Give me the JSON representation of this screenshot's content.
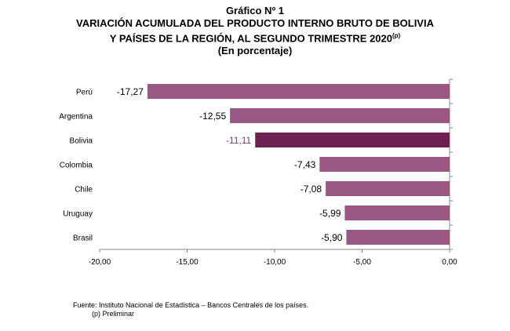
{
  "header": {
    "label": "Gráfico Nº 1",
    "title_line1": "VARIACIÓN ACUMULADA DEL PRODUCTO INTERNO BRUTO DE BOLIVIA",
    "title_line2": "Y PAÍSES DE LA REGIÓN, AL SEGUNDO TRIMESTRE 2020",
    "title_sup": "(p)",
    "units": "(En porcentaje)"
  },
  "chart_data": {
    "type": "bar",
    "orientation": "horizontal",
    "categories": [
      "Perú",
      "Argentina",
      "Bolivia",
      "Colombia",
      "Chile",
      "Uruguay",
      "Brasil"
    ],
    "values": [
      -17.27,
      -12.55,
      -11.11,
      -7.43,
      -7.08,
      -5.99,
      -5.9
    ],
    "value_labels": [
      "-17,27",
      "-12,55",
      "-11,11",
      "-7,43",
      "-7,08",
      "-5,99",
      "-5,90"
    ],
    "highlight": "Bolivia",
    "xlim": [
      -20,
      0
    ],
    "xticks": [
      -20,
      -15,
      -10,
      -5,
      0
    ],
    "xtick_labels": [
      "-20,00",
      "-15,00",
      "-10,00",
      "-5,00",
      "0,00"
    ],
    "colors": {
      "bar": "#9b5784",
      "highlight_bar": "#6e2150",
      "highlight_label": "#8a3a66",
      "axis": "#888888"
    }
  },
  "footer": {
    "source": "Fuente: Instituto Nacional de Estadística – Bancos Centrales de los países.",
    "note": "(p) Preliminar"
  }
}
